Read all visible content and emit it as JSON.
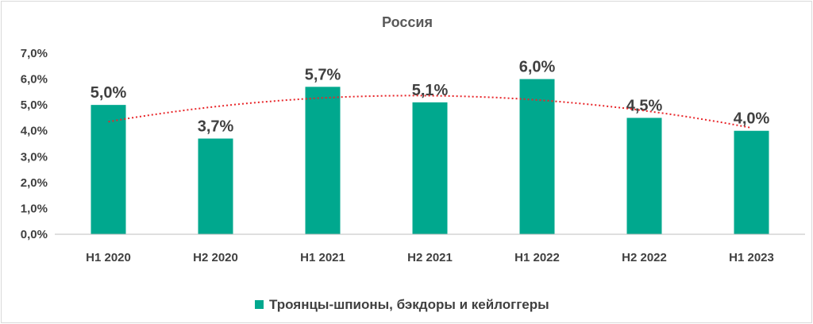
{
  "chart_data": {
    "type": "bar",
    "title": "Россия",
    "categories": [
      "H1 2020",
      "H2 2020",
      "H1 2021",
      "H2 2021",
      "H1 2022",
      "H2 2022",
      "H1 2023"
    ],
    "series": [
      {
        "name": "Троянцы-шпионы, бэкдоры и кейлоггеры",
        "values": [
          5.0,
          3.7,
          5.7,
          5.1,
          6.0,
          4.5,
          4.0
        ],
        "data_labels": [
          "5,0%",
          "3,7%",
          "5,7%",
          "5,1%",
          "6,0%",
          "4,5%",
          "4,0%"
        ],
        "color": "#00a88e"
      }
    ],
    "y_ticks": [
      "0,0%",
      "1,0%",
      "2,0%",
      "3,0%",
      "4,0%",
      "5,0%",
      "6,0%",
      "7,0%"
    ],
    "ylim": [
      0,
      7
    ],
    "trendline": {
      "type": "polynomial",
      "color": "#e8262a",
      "style": "dotted"
    },
    "grid": false,
    "legend_position": "bottom"
  }
}
